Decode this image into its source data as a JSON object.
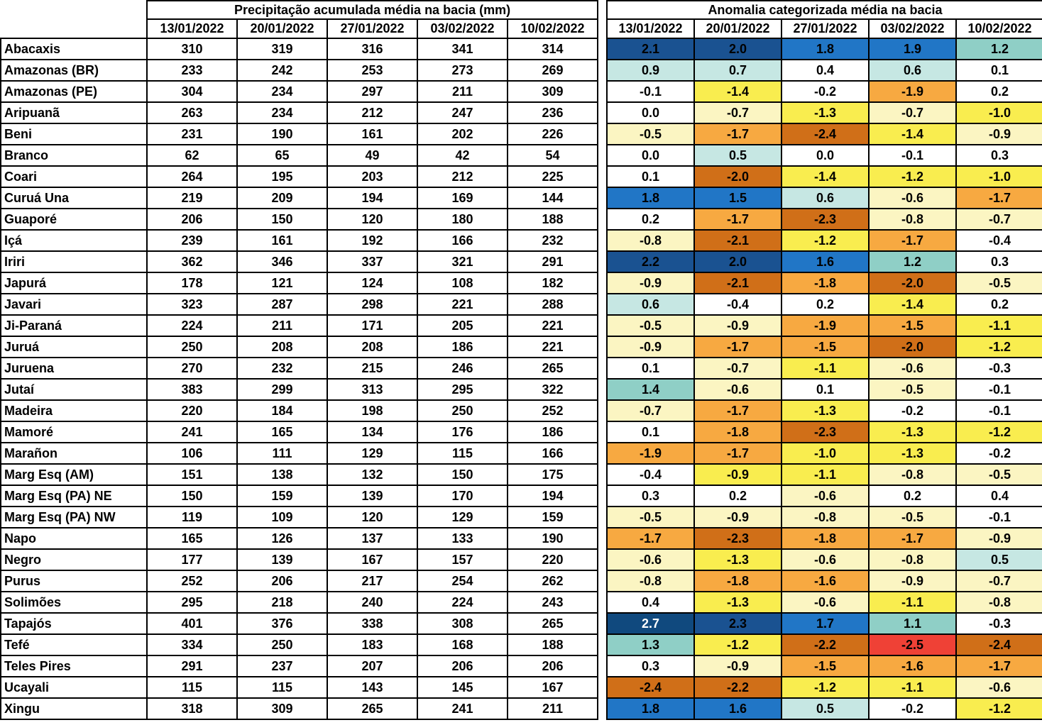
{
  "chart_data": [
    {
      "type": "table",
      "title": "Precipitação acumulada média na bacia (mm)",
      "columns": [
        "13/01/2022",
        "20/01/2022",
        "27/01/2022",
        "03/02/2022",
        "10/02/2022"
      ],
      "rows": [
        {
          "name": "Abacaxis",
          "values": [
            310,
            319,
            316,
            341,
            314
          ]
        },
        {
          "name": "Amazonas (BR)",
          "values": [
            233,
            242,
            253,
            273,
            269
          ]
        },
        {
          "name": "Amazonas (PE)",
          "values": [
            304,
            234,
            297,
            211,
            309
          ]
        },
        {
          "name": "Aripuanã",
          "values": [
            263,
            234,
            212,
            247,
            236
          ]
        },
        {
          "name": "Beni",
          "values": [
            231,
            190,
            161,
            202,
            226
          ]
        },
        {
          "name": "Branco",
          "values": [
            62,
            65,
            49,
            42,
            54
          ]
        },
        {
          "name": "Coari",
          "values": [
            264,
            195,
            203,
            212,
            225
          ]
        },
        {
          "name": "Curuá Una",
          "values": [
            219,
            209,
            194,
            169,
            144
          ]
        },
        {
          "name": "Guaporé",
          "values": [
            206,
            150,
            120,
            180,
            188
          ]
        },
        {
          "name": "Içá",
          "values": [
            239,
            161,
            192,
            166,
            232
          ]
        },
        {
          "name": "Iriri",
          "values": [
            362,
            346,
            337,
            321,
            291
          ]
        },
        {
          "name": "Japurá",
          "values": [
            178,
            121,
            124,
            108,
            182
          ]
        },
        {
          "name": "Javari",
          "values": [
            323,
            287,
            298,
            221,
            288
          ]
        },
        {
          "name": "Ji-Paraná",
          "values": [
            224,
            211,
            171,
            205,
            221
          ]
        },
        {
          "name": "Juruá",
          "values": [
            250,
            208,
            208,
            186,
            221
          ]
        },
        {
          "name": "Juruena",
          "values": [
            270,
            232,
            215,
            246,
            265
          ]
        },
        {
          "name": "Jutaí",
          "values": [
            383,
            299,
            313,
            295,
            322
          ]
        },
        {
          "name": "Madeira",
          "values": [
            220,
            184,
            198,
            250,
            252
          ]
        },
        {
          "name": "Mamoré",
          "values": [
            241,
            165,
            134,
            176,
            186
          ]
        },
        {
          "name": "Marañon",
          "values": [
            106,
            111,
            129,
            115,
            166
          ]
        },
        {
          "name": "Marg Esq (AM)",
          "values": [
            151,
            138,
            132,
            150,
            175
          ]
        },
        {
          "name": "Marg Esq (PA) NE",
          "values": [
            150,
            159,
            139,
            170,
            194
          ]
        },
        {
          "name": "Marg Esq (PA) NW",
          "values": [
            119,
            109,
            120,
            129,
            159
          ]
        },
        {
          "name": "Napo",
          "values": [
            165,
            126,
            137,
            133,
            190
          ]
        },
        {
          "name": "Negro",
          "values": [
            177,
            139,
            167,
            157,
            220
          ]
        },
        {
          "name": "Purus",
          "values": [
            252,
            206,
            217,
            254,
            262
          ]
        },
        {
          "name": "Solimões",
          "values": [
            295,
            218,
            240,
            224,
            243
          ]
        },
        {
          "name": "Tapajós",
          "values": [
            401,
            376,
            338,
            308,
            265
          ]
        },
        {
          "name": "Tefé",
          "values": [
            334,
            250,
            183,
            168,
            188
          ]
        },
        {
          "name": "Teles Pires",
          "values": [
            291,
            237,
            207,
            206,
            206
          ]
        },
        {
          "name": "Ucayali",
          "values": [
            115,
            115,
            143,
            145,
            167
          ]
        },
        {
          "name": "Xingu",
          "values": [
            318,
            309,
            265,
            241,
            211
          ]
        }
      ]
    },
    {
      "type": "heatmap",
      "title": "Anomalia categorizada média na bacia",
      "columns": [
        "13/01/2022",
        "20/01/2022",
        "27/01/2022",
        "03/02/2022",
        "10/02/2022"
      ],
      "rows": [
        {
          "name": "Abacaxis",
          "values": [
            2.1,
            2.0,
            1.8,
            1.9,
            1.2
          ],
          "categories": [
            "b2",
            "b2",
            "b1",
            "b1",
            "t"
          ]
        },
        {
          "name": "Amazonas (BR)",
          "values": [
            0.9,
            0.7,
            0.4,
            0.6,
            0.1
          ],
          "categories": [
            "c",
            "c",
            "w",
            "c",
            "w"
          ]
        },
        {
          "name": "Amazonas (PE)",
          "values": [
            -0.1,
            -1.4,
            -0.2,
            -1.9,
            0.2
          ],
          "categories": [
            "w",
            "y2",
            "w",
            "o",
            "w"
          ]
        },
        {
          "name": "Aripuanã",
          "values": [
            0.0,
            -0.7,
            -1.3,
            -0.7,
            -1.0
          ],
          "categories": [
            "w",
            "y1",
            "y2",
            "y1",
            "y2"
          ]
        },
        {
          "name": "Beni",
          "values": [
            -0.5,
            -1.7,
            -2.4,
            -1.4,
            -0.9
          ],
          "categories": [
            "y1",
            "o",
            "bo",
            "y2",
            "y1"
          ]
        },
        {
          "name": "Branco",
          "values": [
            0.0,
            0.5,
            0.0,
            -0.1,
            0.3
          ],
          "categories": [
            "w",
            "c",
            "w",
            "w",
            "w"
          ]
        },
        {
          "name": "Coari",
          "values": [
            0.1,
            -2.0,
            -1.4,
            -1.2,
            -1.0
          ],
          "categories": [
            "w",
            "bo",
            "y2",
            "y2",
            "y2"
          ]
        },
        {
          "name": "Curuá Una",
          "values": [
            1.8,
            1.5,
            0.6,
            -0.6,
            -1.7
          ],
          "categories": [
            "b1",
            "b1",
            "c",
            "y1",
            "o"
          ]
        },
        {
          "name": "Guaporé",
          "values": [
            0.2,
            -1.7,
            -2.3,
            -0.8,
            -0.7
          ],
          "categories": [
            "w",
            "o",
            "bo",
            "y1",
            "y1"
          ]
        },
        {
          "name": "Içá",
          "values": [
            -0.8,
            -2.1,
            -1.2,
            -1.7,
            -0.4
          ],
          "categories": [
            "y1",
            "bo",
            "y2",
            "o",
            "w"
          ]
        },
        {
          "name": "Iriri",
          "values": [
            2.2,
            2.0,
            1.6,
            1.2,
            0.3
          ],
          "categories": [
            "b2",
            "b2",
            "b1",
            "t",
            "w"
          ]
        },
        {
          "name": "Japurá",
          "values": [
            -0.9,
            -2.1,
            -1.8,
            -2.0,
            -0.5
          ],
          "categories": [
            "y1",
            "bo",
            "o",
            "bo",
            "y1"
          ]
        },
        {
          "name": "Javari",
          "values": [
            0.6,
            -0.4,
            0.2,
            -1.4,
            0.2
          ],
          "categories": [
            "c",
            "w",
            "w",
            "y2",
            "w"
          ]
        },
        {
          "name": "Ji-Paraná",
          "values": [
            -0.5,
            -0.9,
            -1.9,
            -1.5,
            -1.1
          ],
          "categories": [
            "y1",
            "y1",
            "o",
            "o",
            "y2"
          ]
        },
        {
          "name": "Juruá",
          "values": [
            -0.9,
            -1.7,
            -1.5,
            -2.0,
            -1.2
          ],
          "categories": [
            "y1",
            "o",
            "o",
            "bo",
            "y2"
          ]
        },
        {
          "name": "Juruena",
          "values": [
            0.1,
            -0.7,
            -1.1,
            -0.6,
            -0.3
          ],
          "categories": [
            "w",
            "y1",
            "y2",
            "y1",
            "w"
          ]
        },
        {
          "name": "Jutaí",
          "values": [
            1.4,
            -0.6,
            0.1,
            -0.5,
            -0.1
          ],
          "categories": [
            "t",
            "y1",
            "w",
            "y1",
            "w"
          ]
        },
        {
          "name": "Madeira",
          "values": [
            -0.7,
            -1.7,
            -1.3,
            -0.2,
            -0.1
          ],
          "categories": [
            "y1",
            "o",
            "y2",
            "w",
            "w"
          ]
        },
        {
          "name": "Mamoré",
          "values": [
            0.1,
            -1.8,
            -2.3,
            -1.3,
            -1.2
          ],
          "categories": [
            "w",
            "o",
            "bo",
            "y2",
            "y2"
          ]
        },
        {
          "name": "Marañon",
          "values": [
            -1.9,
            -1.7,
            -1.0,
            -1.3,
            -0.2
          ],
          "categories": [
            "o",
            "o",
            "y2",
            "y2",
            "w"
          ]
        },
        {
          "name": "Marg Esq (AM)",
          "values": [
            -0.4,
            -0.9,
            -1.1,
            -0.8,
            -0.5
          ],
          "categories": [
            "w",
            "y2",
            "y2",
            "y1",
            "y1"
          ]
        },
        {
          "name": "Marg Esq (PA) NE",
          "values": [
            0.3,
            0.2,
            -0.6,
            0.2,
            0.4
          ],
          "categories": [
            "w",
            "w",
            "y1",
            "w",
            "w"
          ]
        },
        {
          "name": "Marg Esq (PA) NW",
          "values": [
            -0.5,
            -0.9,
            -0.8,
            -0.5,
            -0.1
          ],
          "categories": [
            "y1",
            "y1",
            "y1",
            "y1",
            "w"
          ]
        },
        {
          "name": "Napo",
          "values": [
            -1.7,
            -2.3,
            -1.8,
            -1.7,
            -0.9
          ],
          "categories": [
            "o",
            "bo",
            "o",
            "o",
            "y1"
          ]
        },
        {
          "name": "Negro",
          "values": [
            -0.6,
            -1.3,
            -0.6,
            -0.8,
            0.5
          ],
          "categories": [
            "y1",
            "y2",
            "y1",
            "y1",
            "c"
          ]
        },
        {
          "name": "Purus",
          "values": [
            -0.8,
            -1.8,
            -1.6,
            -0.9,
            -0.7
          ],
          "categories": [
            "y1",
            "o",
            "o",
            "y1",
            "y1"
          ]
        },
        {
          "name": "Solimões",
          "values": [
            0.4,
            -1.3,
            -0.6,
            -1.1,
            -0.8
          ],
          "categories": [
            "w",
            "y2",
            "y1",
            "y2",
            "y1"
          ]
        },
        {
          "name": "Tapajós",
          "values": [
            2.7,
            2.3,
            1.7,
            1.1,
            -0.3
          ],
          "categories": [
            "b3",
            "b2",
            "b1",
            "t",
            "w"
          ]
        },
        {
          "name": "Tefé",
          "values": [
            1.3,
            -1.2,
            -2.2,
            -2.5,
            -2.4
          ],
          "categories": [
            "t",
            "y2",
            "bo",
            "r",
            "bo"
          ]
        },
        {
          "name": "Teles Pires",
          "values": [
            0.3,
            -0.9,
            -1.5,
            -1.6,
            -1.7
          ],
          "categories": [
            "w",
            "y1",
            "o",
            "o",
            "o"
          ]
        },
        {
          "name": "Ucayali",
          "values": [
            -2.4,
            -2.2,
            -1.2,
            -1.1,
            -0.6
          ],
          "categories": [
            "bo",
            "bo",
            "y2",
            "y2",
            "y1"
          ]
        },
        {
          "name": "Xingu",
          "values": [
            1.8,
            1.6,
            0.5,
            -0.2,
            -1.2
          ],
          "categories": [
            "b1",
            "b1",
            "c",
            "w",
            "y2"
          ]
        }
      ],
      "category_colors": {
        "b3": {
          "bg": "#10497E",
          "fg": "#FFFFFF"
        },
        "b2": {
          "bg": "#1A5291",
          "fg": "#000000"
        },
        "b1": {
          "bg": "#2176C6",
          "fg": "#000000"
        },
        "t": {
          "bg": "#8FCFC6",
          "fg": "#000000"
        },
        "c": {
          "bg": "#C6E7E3",
          "fg": "#000000"
        },
        "w": {
          "bg": "#FFFFFF",
          "fg": "#000000"
        },
        "y1": {
          "bg": "#FBF5C2",
          "fg": "#000000"
        },
        "y2": {
          "bg": "#F9ED4F",
          "fg": "#000000"
        },
        "o": {
          "bg": "#F7A941",
          "fg": "#000000"
        },
        "bo": {
          "bg": "#D06F18",
          "fg": "#000000"
        },
        "r": {
          "bg": "#EF4136",
          "fg": "#000000"
        }
      }
    }
  ]
}
